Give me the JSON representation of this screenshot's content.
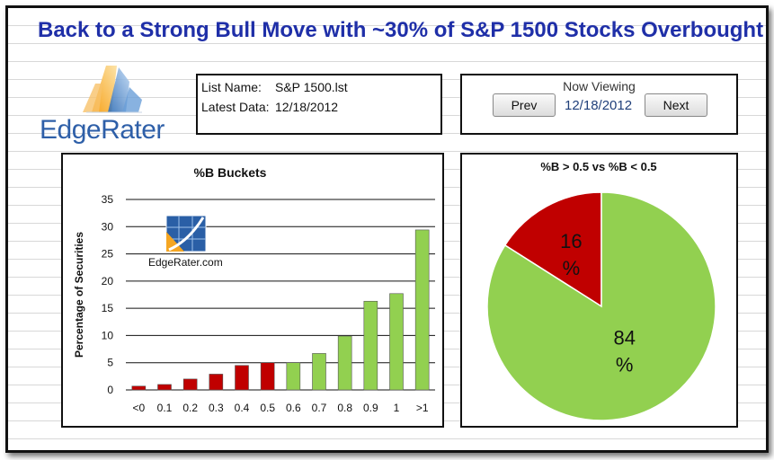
{
  "page": {
    "title": "Back to a Strong Bull Move with ~30% of S&P 1500 Stocks Overbought"
  },
  "logo": {
    "text": "EdgeRater"
  },
  "list_info": {
    "list_name_label": "List Name:",
    "list_name_value": "S&P 1500.lst",
    "latest_data_label": "Latest Data:",
    "latest_data_value": "12/18/2012"
  },
  "viewer": {
    "now_viewing_label": "Now Viewing",
    "prev_label": "Prev",
    "next_label": "Next",
    "date": "12/18/2012"
  },
  "watermark": {
    "text": "EdgeRater.com"
  },
  "colors": {
    "red": "#c00000",
    "green": "#92d050",
    "title_blue": "#1f2fa8"
  },
  "chart_data": [
    {
      "type": "bar",
      "title": "%B Buckets",
      "xlabel": "",
      "ylabel": "Percentage of Securities",
      "categories": [
        "<0",
        "0.1",
        "0.2",
        "0.3",
        "0.4",
        "0.5",
        "0.6",
        "0.7",
        "0.8",
        "0.9",
        "1",
        ">1"
      ],
      "values": [
        0.7,
        1.0,
        2.0,
        2.9,
        4.5,
        5.0,
        5.0,
        6.7,
        9.9,
        16.3,
        17.7,
        29.4
      ],
      "colors": [
        "#c00000",
        "#c00000",
        "#c00000",
        "#c00000",
        "#c00000",
        "#c00000",
        "#92d050",
        "#92d050",
        "#92d050",
        "#92d050",
        "#92d050",
        "#92d050"
      ],
      "ylim": [
        0,
        35
      ],
      "yticks": [
        "0",
        "5",
        "10",
        "15",
        "20",
        "25",
        "30",
        "35"
      ],
      "grid": true
    },
    {
      "type": "pie",
      "title": "%B > 0.5 vs %B < 0.5",
      "slices": [
        {
          "label_value": "16",
          "label_unit": "%",
          "value": 16,
          "color": "#c00000"
        },
        {
          "label_value": "84",
          "label_unit": "%",
          "value": 84,
          "color": "#92d050"
        }
      ]
    }
  ]
}
